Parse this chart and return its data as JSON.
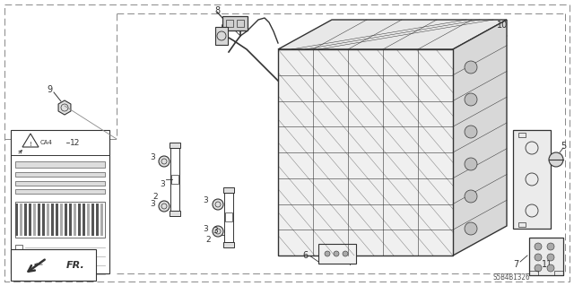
{
  "diagram_code": "S5B4B1326",
  "background": "#ffffff",
  "lc": "#333333",
  "bc": "#888888",
  "fig_w": 6.4,
  "fig_h": 3.19,
  "dpi": 100
}
